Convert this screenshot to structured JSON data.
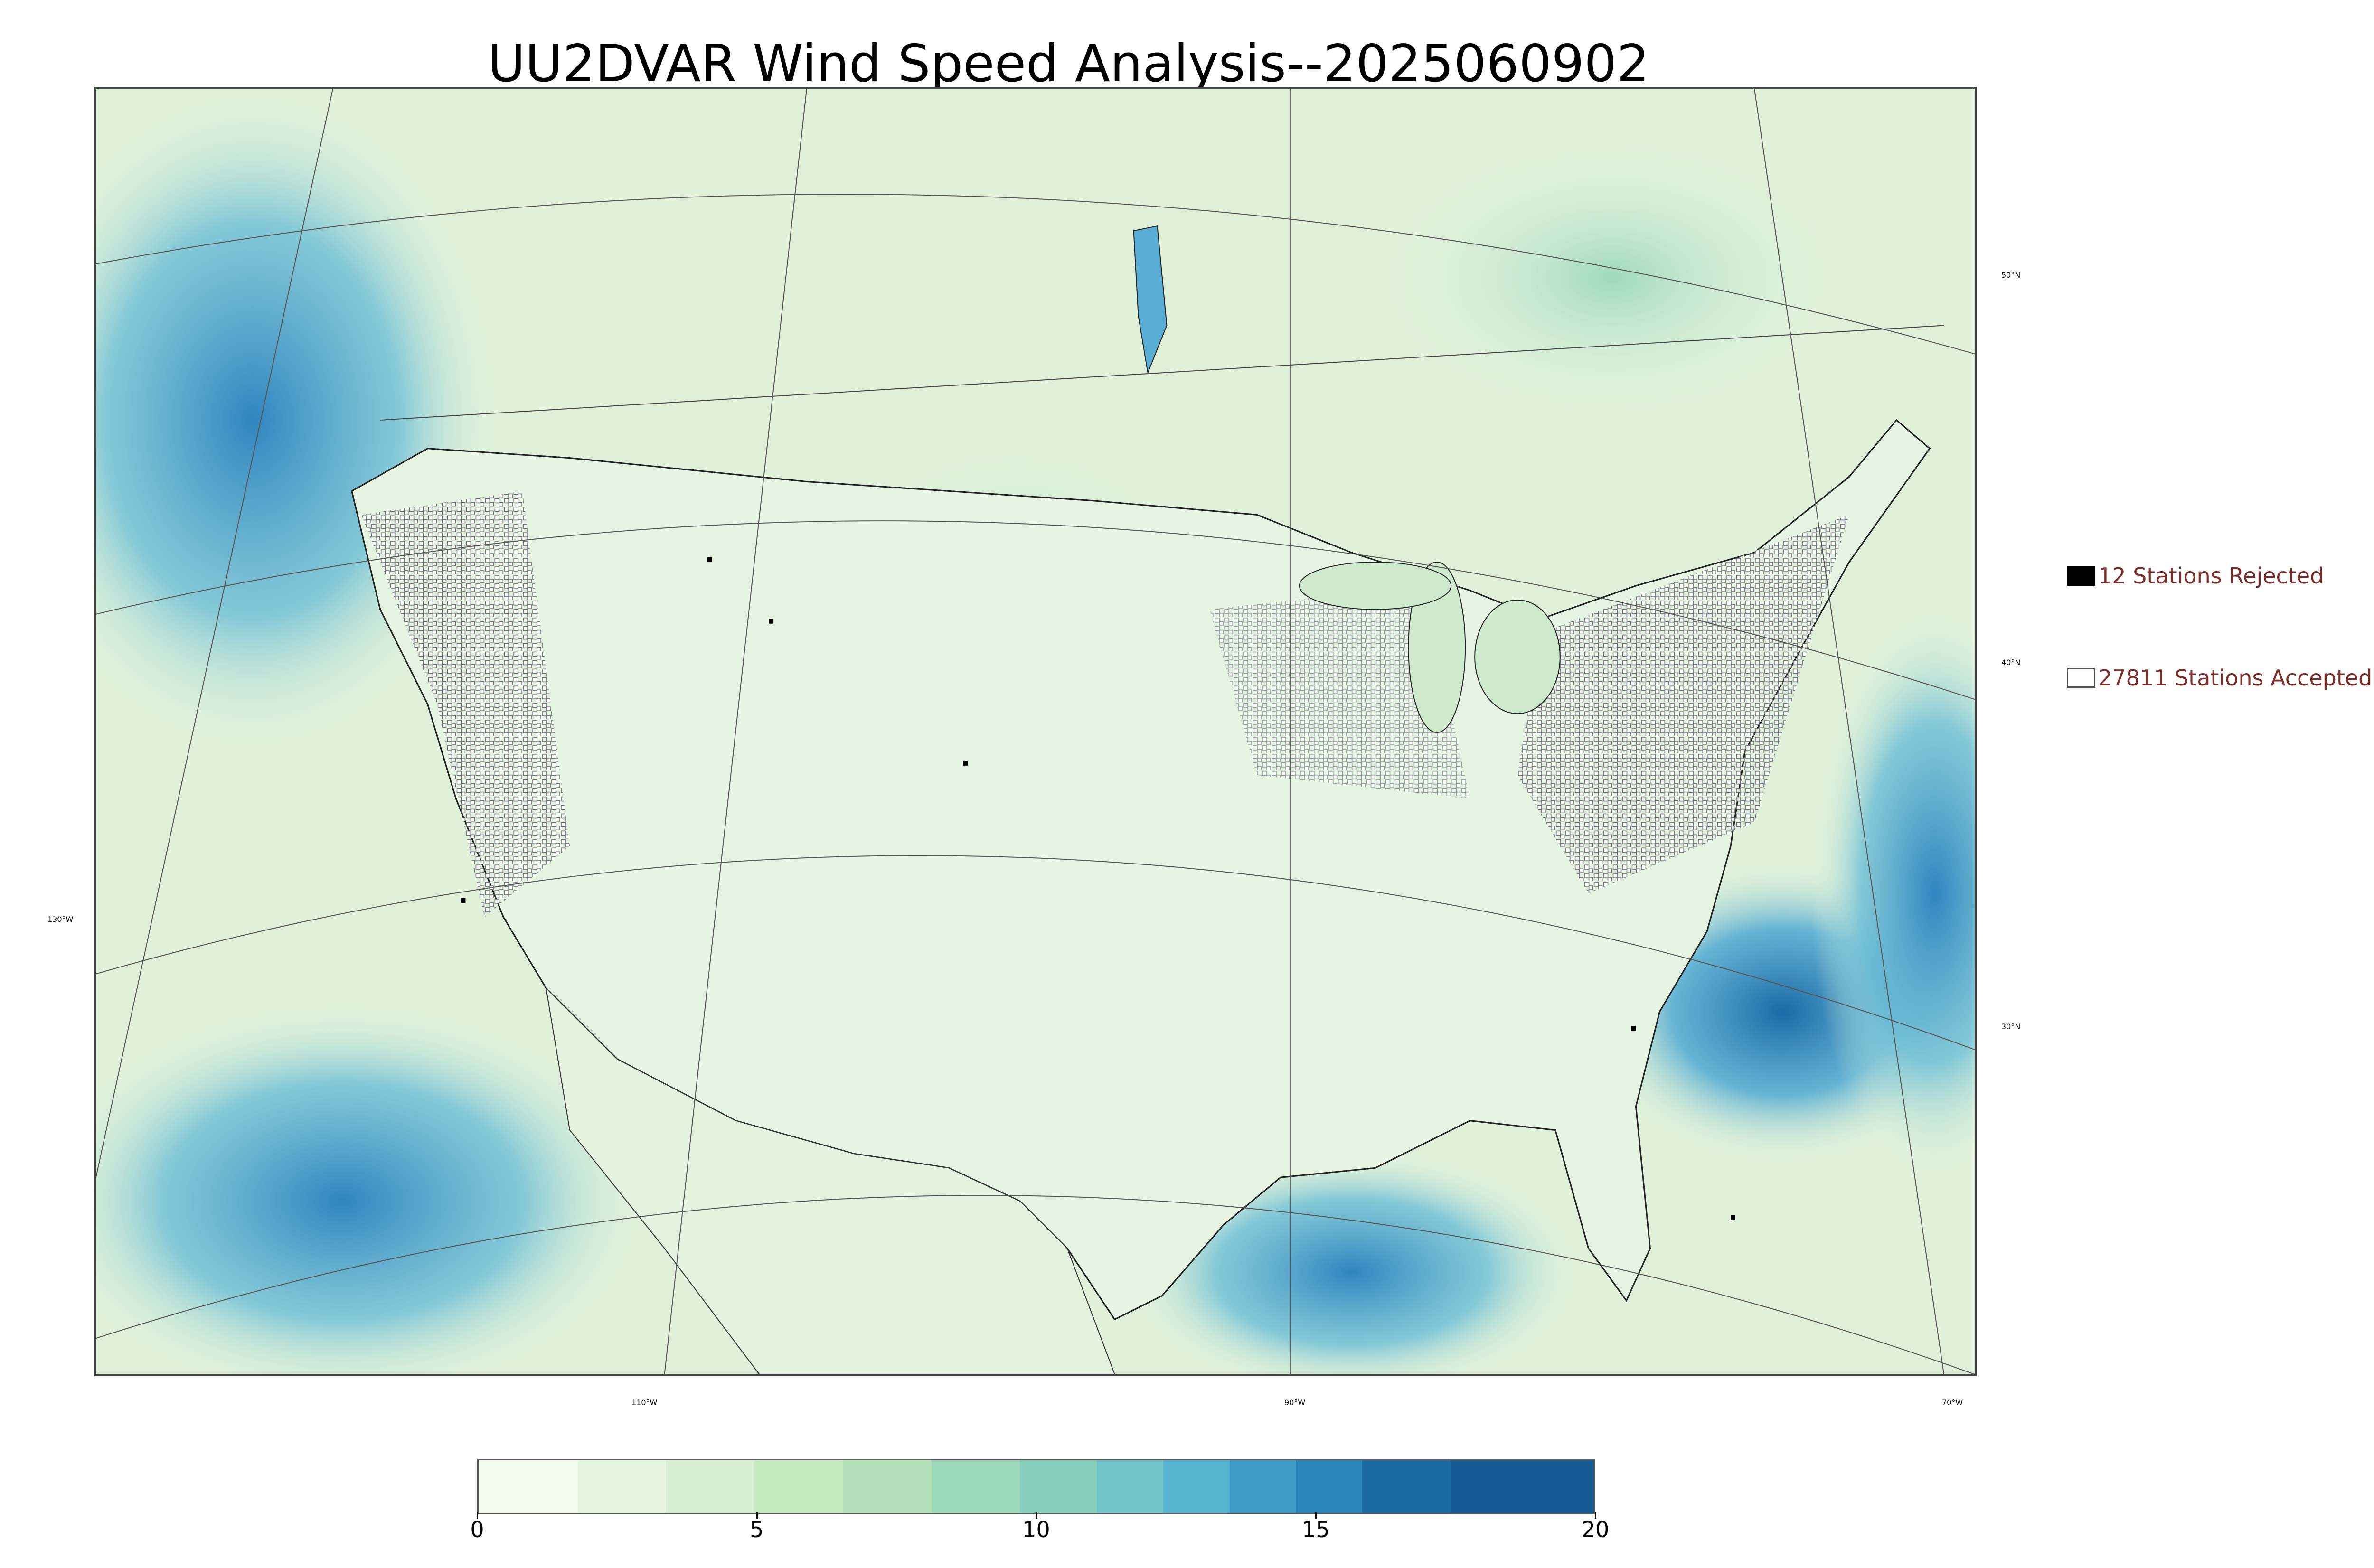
{
  "title": "UU2DVAR Wind Speed Analysis--2025060902",
  "lat_labels": [
    "50°N",
    "40°N",
    "30°N"
  ],
  "lon_labels": [
    "130°W",
    "110°W",
    "90°W",
    "70°W"
  ],
  "legend": {
    "rejected": "12 Stations Rejected",
    "accepted": "27811 Stations Accepted"
  },
  "colorbar": {
    "min": 0,
    "max": 20,
    "ticks": [
      "0",
      "5",
      "10",
      "15",
      "20"
    ],
    "colors": [
      "#f2faee",
      "#e6f5e0",
      "#d8efd3",
      "#c7e9c0",
      "#b2e1b9",
      "#9fd9bb",
      "#88cfbe",
      "#6fc3c9",
      "#57b4d0",
      "#419cc9",
      "#2b85bb",
      "#1b6aa4",
      "#155a92"
    ]
  },
  "colors": {
    "ocean_wind": "#5aaed6",
    "land_wind": "#d9f0d3",
    "station_outline": "#555555",
    "rejected_fill": "#000000",
    "legend_text": "#7a2e2a"
  }
}
